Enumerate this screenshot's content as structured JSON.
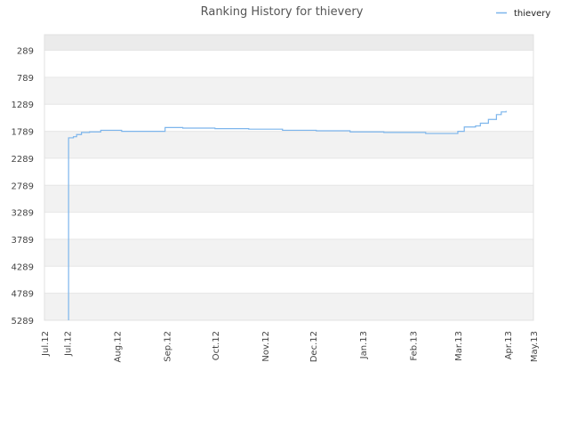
{
  "chart_data": {
    "type": "line",
    "title": "Ranking History for thievery",
    "xlabel": "",
    "ylabel": "",
    "y_inverted": true,
    "ylim": [
      5289,
      0
    ],
    "yticks": [
      289,
      789,
      1289,
      1789,
      2289,
      2789,
      3289,
      3789,
      4289,
      4789,
      5289
    ],
    "ytick_labels": [
      "289",
      "789",
      "1289",
      "1789",
      "2289",
      "2789",
      "3289",
      "3789",
      "4289",
      "4789",
      "5289"
    ],
    "xlim": [
      "2012-07-01",
      "2013-05-01"
    ],
    "xticks": [
      "2012-07-01",
      "2012-07-15",
      "2012-08-15",
      "2012-09-15",
      "2012-10-15",
      "2012-11-15",
      "2012-12-15",
      "2013-01-15",
      "2013-02-15",
      "2013-03-15",
      "2013-04-15",
      "2013-05-01"
    ],
    "xtick_labels": [
      "Jul.12",
      "Jul.12",
      "Aug.12",
      "Sep.12",
      "Oct.12",
      "Nov.12",
      "Dec.12",
      "Jan.13",
      "Feb.13",
      "Mar.13",
      "Apr.13",
      "May.13"
    ],
    "grid": true,
    "legend_position": "top-right",
    "series": [
      {
        "name": "thievery",
        "color": "#7cb5ec",
        "points": [
          [
            "2012-07-16",
            5289
          ],
          [
            "2012-07-16",
            1910
          ],
          [
            "2012-07-19",
            1890
          ],
          [
            "2012-07-21",
            1850
          ],
          [
            "2012-07-24",
            1810
          ],
          [
            "2012-07-29",
            1800
          ],
          [
            "2012-08-05",
            1770
          ],
          [
            "2012-08-17",
            1770
          ],
          [
            "2012-08-18",
            1790
          ],
          [
            "2012-09-13",
            1790
          ],
          [
            "2012-09-14",
            1720
          ],
          [
            "2012-09-25",
            1730
          ],
          [
            "2012-10-15",
            1740
          ],
          [
            "2012-11-05",
            1750
          ],
          [
            "2012-11-26",
            1770
          ],
          [
            "2012-12-17",
            1780
          ],
          [
            "2013-01-07",
            1800
          ],
          [
            "2013-01-28",
            1810
          ],
          [
            "2013-02-23",
            1830
          ],
          [
            "2013-03-13",
            1830
          ],
          [
            "2013-03-15",
            1790
          ],
          [
            "2013-03-19",
            1710
          ],
          [
            "2013-03-26",
            1690
          ],
          [
            "2013-03-29",
            1640
          ],
          [
            "2013-04-03",
            1570
          ],
          [
            "2013-04-08",
            1480
          ],
          [
            "2013-04-11",
            1430
          ],
          [
            "2013-04-14",
            1410
          ]
        ]
      }
    ]
  },
  "colors": {
    "band_odd": "#f2f2f2",
    "band_top": "#ebebeb",
    "gridline": "#e6e6e6",
    "frame": "#e0e0e0",
    "tick_text": "#444444",
    "title_text": "#555555"
  }
}
